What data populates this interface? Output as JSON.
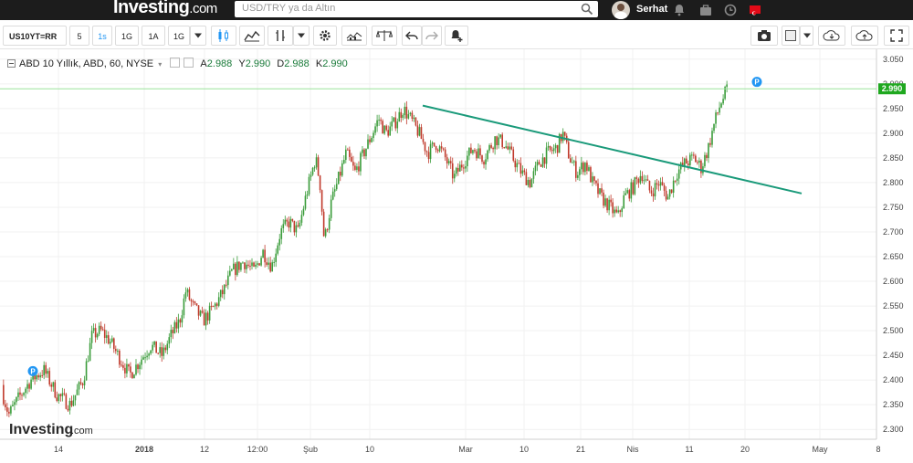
{
  "header": {
    "logo_text": "Investing",
    "logo_suffix": ".com",
    "search_placeholder": "USD/TRY ya da Altın",
    "user_name": "Serhat",
    "icons": [
      "search-icon",
      "bell-icon",
      "briefcase-icon",
      "clock-icon",
      "turkey-flag-icon"
    ]
  },
  "toolbar": {
    "symbol": "US10YT=RR",
    "intervals": [
      "5",
      "1s",
      "1G",
      "1A",
      "1G"
    ],
    "active_interval": "1s",
    "icons": [
      "candles-icon",
      "area-chart-icon",
      "indicators-icon",
      "settings-icon",
      "compare-icon",
      "scale-icon",
      "undo-icon",
      "redo-icon",
      "add-alert-icon",
      "camera-icon",
      "color-icon",
      "cloud-save-icon",
      "cloud-upload-icon",
      "fullscreen-icon"
    ]
  },
  "legend": {
    "title": "ABD 10 Yıllık, ABD, 60, NYSE",
    "open_label": "A",
    "open": "2.988",
    "high_label": "Y",
    "high": "2.990",
    "low_label": "D",
    "low": "2.988",
    "close_label": "K",
    "close": "2.990"
  },
  "watermark": {
    "text": "Investing",
    "suffix": ".com"
  },
  "chart_data": {
    "type": "candlestick",
    "y_ticks": [
      "3.050",
      "3.000",
      "2.950",
      "2.900",
      "2.850",
      "2.800",
      "2.750",
      "2.700",
      "2.650",
      "2.600",
      "2.550",
      "2.500",
      "2.450",
      "2.400",
      "2.350",
      "2.300"
    ],
    "ylim": [
      2.28,
      3.07
    ],
    "x_ticks": [
      "14",
      "2018",
      "12",
      "12:00",
      "Şub",
      "10",
      "Mar",
      "10",
      "21",
      "Nis",
      "11",
      "20",
      "May",
      "8"
    ],
    "last_price": "2.990",
    "last_price_value": 2.99,
    "marker_label": "P",
    "price_path": [
      [
        0.0,
        2.39
      ],
      [
        0.01,
        2.33
      ],
      [
        0.02,
        2.36
      ],
      [
        0.035,
        2.4
      ],
      [
        0.05,
        2.42
      ],
      [
        0.065,
        2.37
      ],
      [
        0.08,
        2.35
      ],
      [
        0.095,
        2.4
      ],
      [
        0.105,
        2.49
      ],
      [
        0.115,
        2.5
      ],
      [
        0.125,
        2.48
      ],
      [
        0.138,
        2.44
      ],
      [
        0.148,
        2.41
      ],
      [
        0.16,
        2.44
      ],
      [
        0.172,
        2.47
      ],
      [
        0.185,
        2.45
      ],
      [
        0.195,
        2.49
      ],
      [
        0.205,
        2.52
      ],
      [
        0.212,
        2.58
      ],
      [
        0.22,
        2.55
      ],
      [
        0.232,
        2.52
      ],
      [
        0.245,
        2.55
      ],
      [
        0.255,
        2.58
      ],
      [
        0.265,
        2.62
      ],
      [
        0.278,
        2.64
      ],
      [
        0.29,
        2.62
      ],
      [
        0.3,
        2.66
      ],
      [
        0.31,
        2.63
      ],
      [
        0.32,
        2.7
      ],
      [
        0.33,
        2.72
      ],
      [
        0.34,
        2.7
      ],
      [
        0.35,
        2.78
      ],
      [
        0.36,
        2.85
      ],
      [
        0.365,
        2.8
      ],
      [
        0.37,
        2.68
      ],
      [
        0.378,
        2.76
      ],
      [
        0.385,
        2.8
      ],
      [
        0.395,
        2.86
      ],
      [
        0.405,
        2.82
      ],
      [
        0.415,
        2.86
      ],
      [
        0.425,
        2.9
      ],
      [
        0.432,
        2.93
      ],
      [
        0.44,
        2.9
      ],
      [
        0.45,
        2.92
      ],
      [
        0.46,
        2.95
      ],
      [
        0.468,
        2.93
      ],
      [
        0.478,
        2.9
      ],
      [
        0.488,
        2.86
      ],
      [
        0.498,
        2.88
      ],
      [
        0.508,
        2.85
      ],
      [
        0.518,
        2.81
      ],
      [
        0.528,
        2.84
      ],
      [
        0.54,
        2.87
      ],
      [
        0.552,
        2.85
      ],
      [
        0.565,
        2.89
      ],
      [
        0.575,
        2.88
      ],
      [
        0.585,
        2.85
      ],
      [
        0.595,
        2.82
      ],
      [
        0.605,
        2.8
      ],
      [
        0.615,
        2.84
      ],
      [
        0.625,
        2.86
      ],
      [
        0.635,
        2.87
      ],
      [
        0.642,
        2.9
      ],
      [
        0.65,
        2.85
      ],
      [
        0.658,
        2.82
      ],
      [
        0.668,
        2.84
      ],
      [
        0.676,
        2.8
      ],
      [
        0.686,
        2.77
      ],
      [
        0.696,
        2.75
      ],
      [
        0.705,
        2.73
      ],
      [
        0.712,
        2.77
      ],
      [
        0.722,
        2.79
      ],
      [
        0.732,
        2.82
      ],
      [
        0.742,
        2.78
      ],
      [
        0.752,
        2.8
      ],
      [
        0.762,
        2.77
      ],
      [
        0.772,
        2.82
      ],
      [
        0.782,
        2.84
      ],
      [
        0.792,
        2.85
      ],
      [
        0.8,
        2.83
      ],
      [
        0.808,
        2.87
      ],
      [
        0.815,
        2.92
      ],
      [
        0.822,
        2.96
      ],
      [
        0.83,
        2.99
      ]
    ],
    "trendline": {
      "start": [
        "~Şub 14",
        2.956
      ],
      "end": [
        "~May 3",
        2.778
      ]
    }
  }
}
